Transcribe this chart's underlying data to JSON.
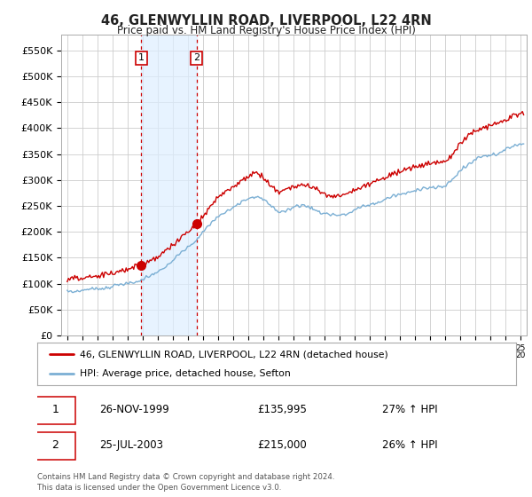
{
  "title": "46, GLENWYLLIN ROAD, LIVERPOOL, L22 4RN",
  "subtitle": "Price paid vs. HM Land Registry's House Price Index (HPI)",
  "footer": "Contains HM Land Registry data © Crown copyright and database right 2024.\nThis data is licensed under the Open Government Licence v3.0.",
  "legend_line1": "46, GLENWYLLIN ROAD, LIVERPOOL, L22 4RN (detached house)",
  "legend_line2": "HPI: Average price, detached house, Sefton",
  "sale1_date": "26-NOV-1999",
  "sale1_price": "£135,995",
  "sale1_hpi": "27% ↑ HPI",
  "sale2_date": "25-JUL-2003",
  "sale2_price": "£215,000",
  "sale2_hpi": "26% ↑ HPI",
  "ylim": [
    0,
    580000
  ],
  "yticks": [
    0,
    50000,
    100000,
    150000,
    200000,
    250000,
    300000,
    350000,
    400000,
    450000,
    500000,
    550000
  ],
  "ytick_labels": [
    "£0",
    "£50K",
    "£100K",
    "£150K",
    "£200K",
    "£250K",
    "£300K",
    "£350K",
    "£400K",
    "£450K",
    "£500K",
    "£550K"
  ],
  "red_line_color": "#cc0000",
  "blue_line_color": "#7bafd4",
  "vline_color": "#cc0000",
  "shade_color": "#ddeeff",
  "grid_color": "#cccccc",
  "bg_color": "#ffffff",
  "sale1_x": 1999.9,
  "sale2_x": 2003.55,
  "sale1_y": 135995,
  "sale2_y": 215000,
  "xlim_left": 1994.6,
  "xlim_right": 2025.4
}
